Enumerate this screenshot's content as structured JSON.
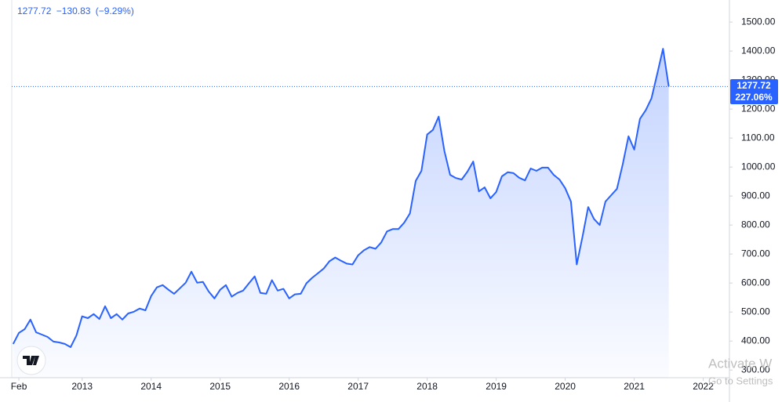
{
  "chart_data": {
    "type": "area",
    "header": {
      "last": "1277.72",
      "change": "−130.83",
      "change_pct": "(−9.29%)"
    },
    "price_tag": {
      "price": "1277.72",
      "percent": "227.06%"
    },
    "color": "#2962ff",
    "x": [
      2012,
      2012.083,
      2012.167,
      2012.25,
      2012.333,
      2012.417,
      2012.5,
      2012.583,
      2012.667,
      2012.75,
      2012.833,
      2012.917,
      2013,
      2013.083,
      2013.167,
      2013.25,
      2013.333,
      2013.417,
      2013.5,
      2013.583,
      2013.667,
      2013.75,
      2013.833,
      2013.917,
      2014,
      2014.083,
      2014.167,
      2014.25,
      2014.333,
      2014.417,
      2014.5,
      2014.583,
      2014.667,
      2014.75,
      2014.833,
      2014.917,
      2015,
      2015.083,
      2015.167,
      2015.25,
      2015.333,
      2015.417,
      2015.5,
      2015.583,
      2015.667,
      2015.75,
      2015.833,
      2015.917,
      2016,
      2016.083,
      2016.167,
      2016.25,
      2016.333,
      2016.417,
      2016.5,
      2016.583,
      2016.667,
      2016.75,
      2016.833,
      2016.917,
      2017,
      2017.083,
      2017.167,
      2017.25,
      2017.333,
      2017.417,
      2017.5,
      2017.583,
      2017.667,
      2017.75,
      2017.833,
      2017.917,
      2018,
      2018.083,
      2018.167,
      2018.25,
      2018.333,
      2018.417,
      2018.5,
      2018.583,
      2018.667,
      2018.75,
      2018.833,
      2018.917,
      2019,
      2019.083,
      2019.167,
      2019.25,
      2019.333,
      2019.417,
      2019.5,
      2019.583,
      2019.667,
      2019.75,
      2019.833,
      2019.917,
      2020,
      2020.083,
      2020.167,
      2020.25,
      2020.333,
      2020.417,
      2020.5,
      2020.583,
      2020.667,
      2020.75,
      2020.833,
      2020.917,
      2021,
      2021.083,
      2021.167,
      2021.25,
      2021.333,
      2021.417,
      2021.5
    ],
    "values": [
      390,
      428,
      441,
      474,
      430,
      422,
      414,
      398,
      395,
      390,
      379,
      419,
      485,
      479,
      493,
      476,
      520,
      479,
      493,
      474,
      495,
      501,
      512,
      506,
      555,
      585,
      593,
      577,
      563,
      582,
      601,
      639,
      601,
      604,
      571,
      547,
      577,
      593,
      553,
      566,
      574,
      599,
      623,
      566,
      563,
      610,
      574,
      580,
      547,
      561,
      563,
      599,
      618,
      634,
      650,
      675,
      688,
      677,
      667,
      664,
      696,
      713,
      724,
      718,
      740,
      778,
      786,
      786,
      808,
      840,
      952,
      987,
      1112,
      1128,
      1174,
      1055,
      973,
      962,
      957,
      984,
      1019,
      916,
      930,
      892,
      914,
      968,
      982,
      979,
      963,
      954,
      995,
      987,
      998,
      998,
      973,
      957,
      927,
      881,
      664,
      759,
      862,
      821,
      800,
      881,
      903,
      925,
      1009,
      1106,
      1060,
      1166,
      1196,
      1237,
      1321,
      1408,
      1277.72
    ],
    "xlim": [
      2011.98,
      2022.38
    ],
    "xticks": [
      {
        "value": 2012.083,
        "label": "Feb"
      },
      2013,
      2014,
      2015,
      2016,
      2017,
      2018,
      2019,
      2020,
      2021,
      2022
    ],
    "ylim": [
      273.5,
      1576
    ],
    "yticks": [
      {
        "value": 300,
        "label": "300.00"
      },
      {
        "value": 400,
        "label": "400.00"
      },
      {
        "value": 500,
        "label": "500.00"
      },
      {
        "value": 600,
        "label": "600.00"
      },
      {
        "value": 700,
        "label": "700.00"
      },
      {
        "value": 800,
        "label": "800.00"
      },
      {
        "value": 900,
        "label": "900.00"
      },
      {
        "value": 1000,
        "label": "1000.00"
      },
      {
        "value": 1100,
        "label": "1100.00"
      },
      {
        "value": 1200,
        "label": "1200.00"
      },
      {
        "value": 1300,
        "label": "1300.00"
      },
      {
        "value": 1400,
        "label": "1400.00"
      },
      {
        "value": 1500,
        "label": "1500.00"
      }
    ]
  },
  "watermark": {
    "line1": "Activate W",
    "line2": "Go to Settings"
  }
}
